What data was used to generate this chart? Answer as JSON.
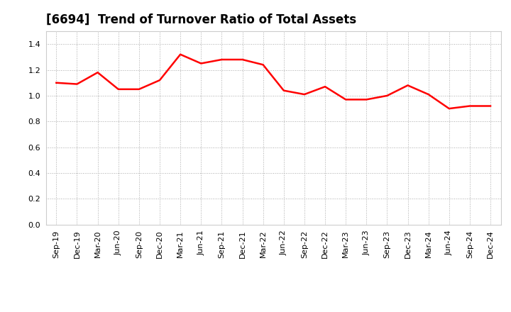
{
  "title": "[6694]  Trend of Turnover Ratio of Total Assets",
  "labels": [
    "Sep-19",
    "Dec-19",
    "Mar-20",
    "Jun-20",
    "Sep-20",
    "Dec-20",
    "Mar-21",
    "Jun-21",
    "Sep-21",
    "Dec-21",
    "Mar-22",
    "Jun-22",
    "Sep-22",
    "Dec-22",
    "Mar-23",
    "Jun-23",
    "Sep-23",
    "Dec-23",
    "Mar-24",
    "Jun-24",
    "Sep-24",
    "Dec-24"
  ],
  "values": [
    1.1,
    1.09,
    1.18,
    1.05,
    1.05,
    1.12,
    1.32,
    1.25,
    1.28,
    1.28,
    1.24,
    1.04,
    1.01,
    1.07,
    0.97,
    0.97,
    1.0,
    1.08,
    1.01,
    0.9,
    0.92,
    0.92
  ],
  "line_color": "#FF0000",
  "line_width": 1.8,
  "ylim": [
    0.0,
    1.5
  ],
  "yticks": [
    0.0,
    0.2,
    0.4,
    0.6,
    0.8,
    1.0,
    1.2,
    1.4
  ],
  "grid_color": "#aaaaaa",
  "background_color": "#ffffff",
  "title_fontsize": 12,
  "tick_fontsize": 8
}
